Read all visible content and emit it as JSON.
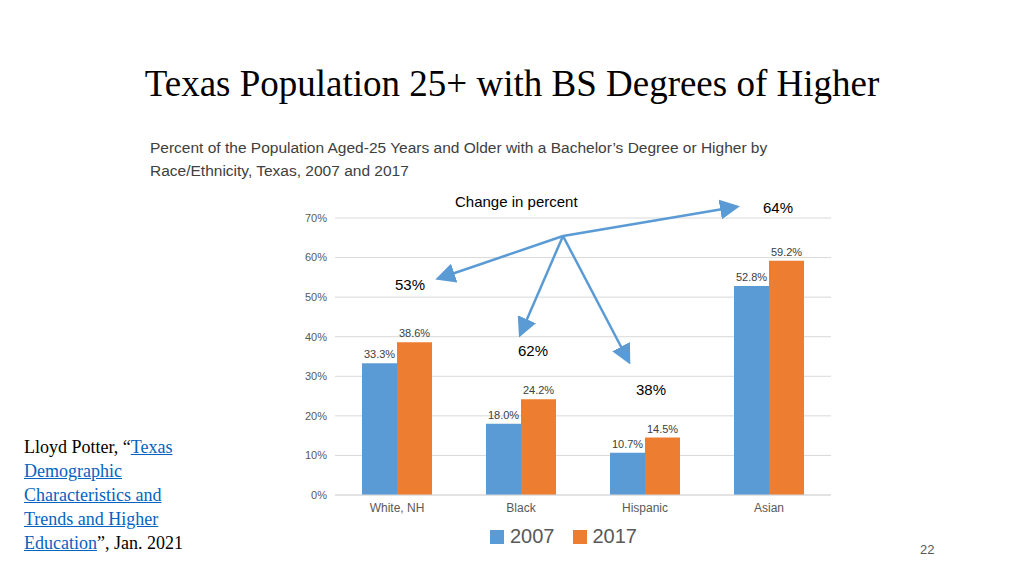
{
  "chart_data": {
    "type": "bar",
    "title": "Percent of the Population Aged-25 Years and Older with a Bachelor’s Degree or Higher by Race/Ethnicity, Texas, 2007 and 2017",
    "categories": [
      "White, NH",
      "Black",
      "Hispanic",
      "Asian"
    ],
    "series": [
      {
        "name": "2007",
        "color": "#5b9bd5",
        "values": [
          33.3,
          18.0,
          10.7,
          52.8
        ],
        "value_labels": [
          "33.3%",
          "18.0%",
          "10.7%",
          "52.8%"
        ]
      },
      {
        "name": "2017",
        "color": "#ed7d31",
        "values": [
          38.6,
          24.2,
          14.5,
          59.2
        ],
        "value_labels": [
          "38.6%",
          "24.2%",
          "14.5%",
          "59.2%"
        ]
      }
    ],
    "ylim": [
      0,
      70
    ],
    "yticks": [
      {
        "value": 0,
        "label": "0%"
      },
      {
        "value": 10,
        "label": "10%"
      },
      {
        "value": 20,
        "label": "20%"
      },
      {
        "value": 30,
        "label": "30%"
      },
      {
        "value": 40,
        "label": "40%"
      },
      {
        "value": 50,
        "label": "50%"
      },
      {
        "value": 60,
        "label": "60%"
      },
      {
        "value": 70,
        "label": "70%"
      }
    ],
    "grid": true,
    "legend": "bottom",
    "data_labels": true,
    "annotations": {
      "title": "Change in percent",
      "labels": [
        "53%",
        "62%",
        "38%",
        "64%"
      ]
    }
  },
  "slide": {
    "title": "Texas Population 25+ with BS Degrees of Higher",
    "citation": {
      "before": "Lloyd Potter, “",
      "link": "Texas Demographic Characteristics and Trends and Higher Education",
      "after": "”, Jan. 2021"
    },
    "page": "22"
  }
}
